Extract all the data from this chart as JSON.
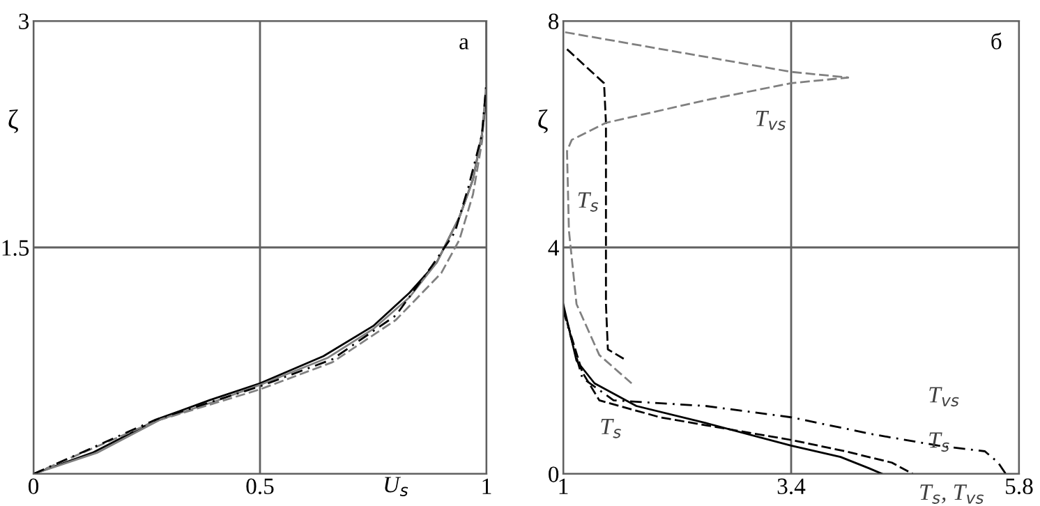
{
  "chart_data": [
    {
      "type": "line",
      "xlabel": "U$_{s}$",
      "ylabel": "ζ",
      "xlim": [
        0,
        1
      ],
      "ylim": [
        0,
        3
      ],
      "xticks": [
        0,
        0.5,
        1
      ],
      "yticks": [
        {
          "value": 0,
          "label": null
        },
        1.5,
        3
      ],
      "grid": true,
      "legend": false,
      "annotations": [
        "а"
      ],
      "series": [
        {
          "color": "#000000",
          "line_style": "solid",
          "x": [
            0,
            0.13,
            0.28,
            0.39,
            0.5,
            0.64,
            0.75,
            0.83,
            0.89,
            0.94,
            0.97,
            0.99,
            1,
            1
          ],
          "values": [
            0,
            0.14,
            0.37,
            0.49,
            0.6,
            0.78,
            0.98,
            1.2,
            1.4,
            1.7,
            1.95,
            2.25,
            2.5,
            3
          ]
        },
        {
          "color": "#808080",
          "line_style": "solid",
          "x": [
            0,
            0.14,
            0.28,
            0.4,
            0.5,
            0.65,
            0.75,
            0.83,
            0.89,
            0.94,
            0.97,
            0.99,
            1
          ],
          "values": [
            0,
            0.14,
            0.36,
            0.48,
            0.59,
            0.77,
            0.96,
            1.17,
            1.4,
            1.7,
            1.95,
            2.25,
            2.6
          ]
        },
        {
          "color": "#808080",
          "line_style": "dashed",
          "x": [
            0,
            0.27,
            0.5,
            0.66,
            0.8,
            0.9,
            0.94,
            0.97,
            0.99,
            1
          ],
          "values": [
            0,
            0.35,
            0.56,
            0.74,
            1.02,
            1.33,
            1.55,
            1.85,
            2.2,
            2.6
          ]
        },
        {
          "color": "#000000",
          "line_style": "dashdot",
          "x": [
            0,
            0.27,
            0.5,
            0.66,
            0.8,
            0.88,
            0.93,
            0.96,
            0.99,
            1
          ],
          "values": [
            0,
            0.36,
            0.58,
            0.76,
            1.05,
            1.38,
            1.6,
            1.9,
            2.25,
            2.6
          ]
        }
      ]
    },
    {
      "type": "line",
      "ylabel": "ζ",
      "xlim": [
        1,
        5.8
      ],
      "ylim": [
        0,
        8
      ],
      "xticks": [
        1,
        3.4,
        5.8
      ],
      "yticks": [
        0,
        4,
        8
      ],
      "grid": true,
      "legend": false,
      "annotations": [
        "б",
        "T$_{vs}$",
        "T$_{s}$",
        "T$_{s}$",
        "T$_{vs}$",
        "T$_{s}$",
        "T$_{s}$, T$_{vs}$"
      ],
      "series": [
        {
          "color": "#000000",
          "line_style": "solid",
          "x": [
            1,
            1.14,
            1.33,
            1.77,
            2.5,
            3.4,
            3.92,
            4.22,
            4.36
          ],
          "values": [
            3,
            2,
            1.6,
            1.2,
            0.9,
            0.5,
            0.3,
            0.1,
            0
          ]
        },
        {
          "color": "#000000",
          "line_style": "dashed",
          "x": [
            1,
            1.2,
            1.38,
            2.02,
            3.4,
            3.97,
            4.46,
            4.68
          ],
          "values": [
            2.9,
            1.8,
            1.3,
            1,
            0.6,
            0.4,
            0.2,
            0
          ]
        },
        {
          "color": "#000000",
          "line_style": "dashdot",
          "x": [
            1,
            1.2,
            1.53,
            2.5,
            3.4,
            4.26,
            4.95,
            5.44,
            5.58,
            5.66
          ],
          "values": [
            2.9,
            1.7,
            1.3,
            1.2,
            1,
            0.7,
            0.5,
            0.4,
            0.2,
            0
          ]
        },
        {
          "color": "#000000",
          "line_style": "dashed",
          "x": [
            1.04,
            1.43,
            1.45,
            1.45,
            1.47,
            1.67
          ],
          "values": [
            7.5,
            6.9,
            6.2,
            3,
            2.2,
            2
          ]
        },
        {
          "color": "#808080",
          "line_style": "dashed",
          "x": [
            1.02,
            3.4,
            4.0,
            3.4,
            2.5,
            1.45,
            1.09,
            1.04,
            1.06,
            1.14,
            1.38,
            1.72
          ],
          "values": [
            7.8,
            7.1,
            7,
            6.9,
            6.6,
            6.2,
            5.9,
            5.7,
            4.3,
            3,
            2.1,
            1.6
          ]
        }
      ]
    }
  ]
}
